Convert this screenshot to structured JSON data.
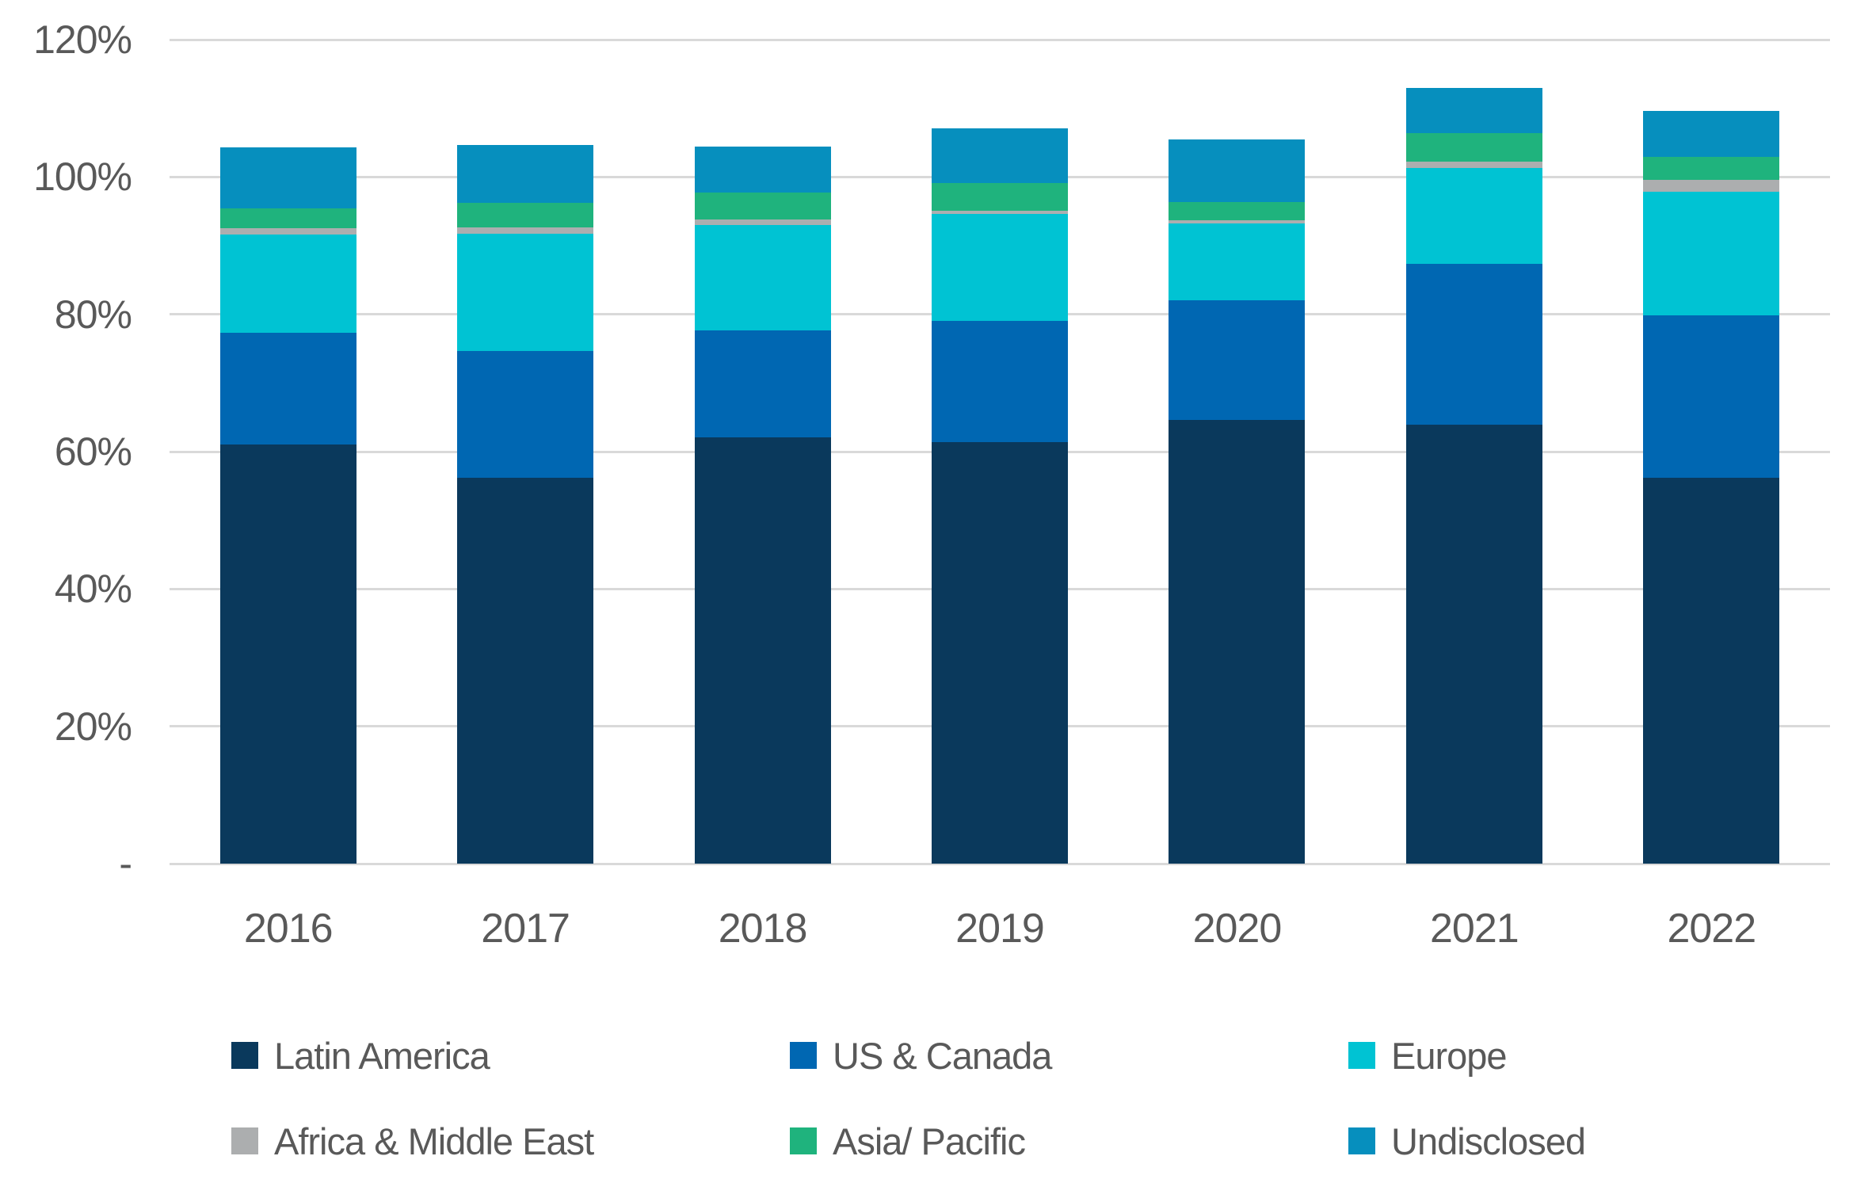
{
  "chart_data": {
    "type": "bar",
    "subtype": "stacked",
    "title": "",
    "categories": [
      "2016",
      "2017",
      "2018",
      "2019",
      "2020",
      "2021",
      "2022"
    ],
    "series": [
      {
        "name": "Latin America",
        "color": "#0A395C",
        "values": [
          61.0,
          56.2,
          62.1,
          61.4,
          64.6,
          63.9,
          56.2
        ]
      },
      {
        "name": "US & Canada",
        "color": "#0067B2",
        "values": [
          16.3,
          18.4,
          15.5,
          17.6,
          17.4,
          23.5,
          23.7
        ]
      },
      {
        "name": "Europe",
        "color": "#00C3D3",
        "values": [
          14.3,
          17.1,
          15.4,
          15.6,
          11.2,
          13.9,
          18.0
        ]
      },
      {
        "name": "Africa & Middle East",
        "color": "#ACAEAF",
        "values": [
          0.9,
          1.0,
          0.8,
          0.5,
          0.5,
          0.9,
          1.7
        ]
      },
      {
        "name": "Asia/ Pacific",
        "color": "#1FB37D",
        "values": [
          2.9,
          3.5,
          3.9,
          4.0,
          2.7,
          4.2,
          3.3
        ]
      },
      {
        "name": "Undisclosed",
        "color": "#068FBE",
        "values": [
          8.9,
          8.5,
          6.7,
          8.0,
          9.1,
          6.6,
          6.7
        ]
      }
    ],
    "stack_totals": [
      104.3,
      104.7,
      104.4,
      107.1,
      105.5,
      113.0,
      109.6
    ],
    "yticks": [
      {
        "label": "-",
        "value": 0
      },
      {
        "label": "20%",
        "value": 20
      },
      {
        "label": "40%",
        "value": 40
      },
      {
        "label": "60%",
        "value": 60
      },
      {
        "label": "80%",
        "value": 80
      },
      {
        "label": "100%",
        "value": 100
      },
      {
        "label": "120%",
        "value": 120
      }
    ],
    "ylim": [
      0,
      120
    ],
    "xlabel": "",
    "ylabel": "",
    "grid": true,
    "legend_position": "bottom",
    "legend_rows": [
      [
        "Latin America",
        "US & Canada",
        "Europe"
      ],
      [
        "Africa & Middle East",
        "Asia/ Pacific",
        "Undisclosed"
      ]
    ]
  },
  "colors": {
    "background": "#FFFFFF",
    "gridline": "#D9D9D9",
    "axis_text": "#595959",
    "legend_text": "#595959"
  }
}
